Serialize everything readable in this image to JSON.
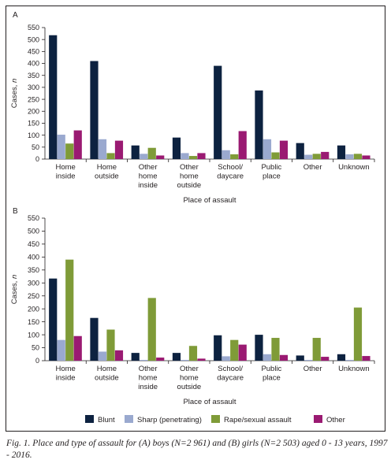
{
  "figure": {
    "caption": "Fig. 1. Place and type of assault for (A) boys (N=2 961) and (B) girls (N=2 503) aged 0 - 13 years, 1997 - 2016."
  },
  "colors": {
    "Blunt": "#0d2240",
    "Sharp (penetrating)": "#9aa9cf",
    "Rape/sexual assault": "#7f9b38",
    "Other": "#9a1a72"
  },
  "chart_data": [
    {
      "type": "bar",
      "panel_label": "A",
      "ylabel": "Cases, n",
      "xlabel": "Place of assault",
      "ylim": [
        0,
        550
      ],
      "yticks": [
        "0",
        "50",
        "100",
        "150",
        "200",
        "250",
        "300",
        "350",
        "400",
        "450",
        "500",
        "550"
      ],
      "categories": [
        [
          "Home",
          "inside"
        ],
        [
          "Home",
          "outside"
        ],
        [
          "Other",
          "home",
          "inside"
        ],
        [
          "Other",
          "home",
          "outside"
        ],
        [
          "School/",
          "daycare"
        ],
        [
          "Public",
          "place"
        ],
        [
          "Other"
        ],
        [
          "Unknown"
        ]
      ],
      "series": [
        {
          "name": "Blunt",
          "values": [
            518,
            410,
            57,
            90,
            390,
            287,
            67,
            57
          ]
        },
        {
          "name": "Sharp (penetrating)",
          "values": [
            102,
            83,
            22,
            25,
            37,
            83,
            18,
            20
          ]
        },
        {
          "name": "Rape/sexual assault",
          "values": [
            65,
            25,
            47,
            13,
            20,
            28,
            22,
            22
          ]
        },
        {
          "name": "Other",
          "values": [
            120,
            77,
            15,
            25,
            117,
            77,
            30,
            15
          ]
        }
      ]
    },
    {
      "type": "bar",
      "panel_label": "B",
      "ylabel": "Cases, n",
      "xlabel": "Place of assault",
      "ylim": [
        0,
        550
      ],
      "yticks": [
        "0",
        "50",
        "100",
        "150",
        "200",
        "250",
        "300",
        "350",
        "400",
        "450",
        "500",
        "550"
      ],
      "categories": [
        [
          "Home",
          "inside"
        ],
        [
          "Home",
          "outside"
        ],
        [
          "Other",
          "home",
          "inside"
        ],
        [
          "Other",
          "home",
          "outside"
        ],
        [
          "School/",
          "daycare"
        ],
        [
          "Public",
          "place"
        ],
        [
          "Other"
        ],
        [
          "Unknown"
        ]
      ],
      "series": [
        {
          "name": "Blunt",
          "values": [
            317,
            165,
            30,
            30,
            98,
            100,
            20,
            25
          ]
        },
        {
          "name": "Sharp (penetrating)",
          "values": [
            80,
            35,
            3,
            3,
            17,
            25,
            3,
            3
          ]
        },
        {
          "name": "Rape/sexual assault",
          "values": [
            390,
            120,
            242,
            57,
            80,
            88,
            88,
            205
          ]
        },
        {
          "name": "Other",
          "values": [
            95,
            40,
            12,
            8,
            62,
            22,
            15,
            18
          ]
        }
      ]
    }
  ],
  "legend": [
    "Blunt",
    "Sharp (penetrating)",
    "Rape/sexual assault",
    "Other"
  ]
}
